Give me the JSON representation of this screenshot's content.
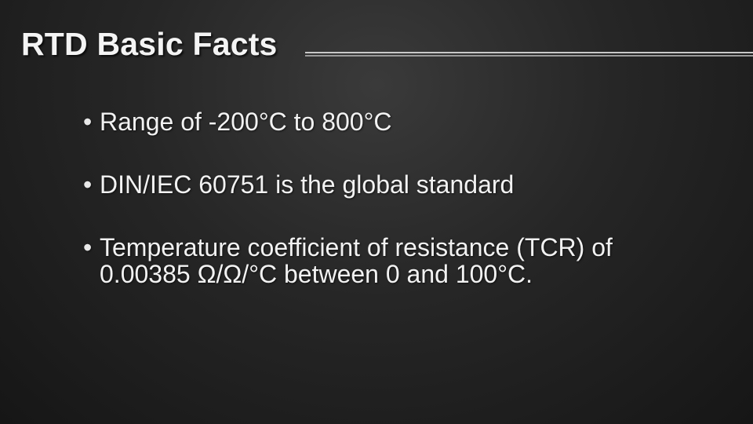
{
  "slide": {
    "title": "RTD Basic Facts",
    "bullet_symbol": "•",
    "bullets": [
      {
        "text": "Range of -200°C to 800°C"
      },
      {
        "text": "DIN/IEC 60751 is the global standard"
      },
      {
        "text": "Temperature coefficient of resistance (TCR) of 0.00385 Ω/Ω/°C between 0 and 100°C."
      }
    ]
  }
}
